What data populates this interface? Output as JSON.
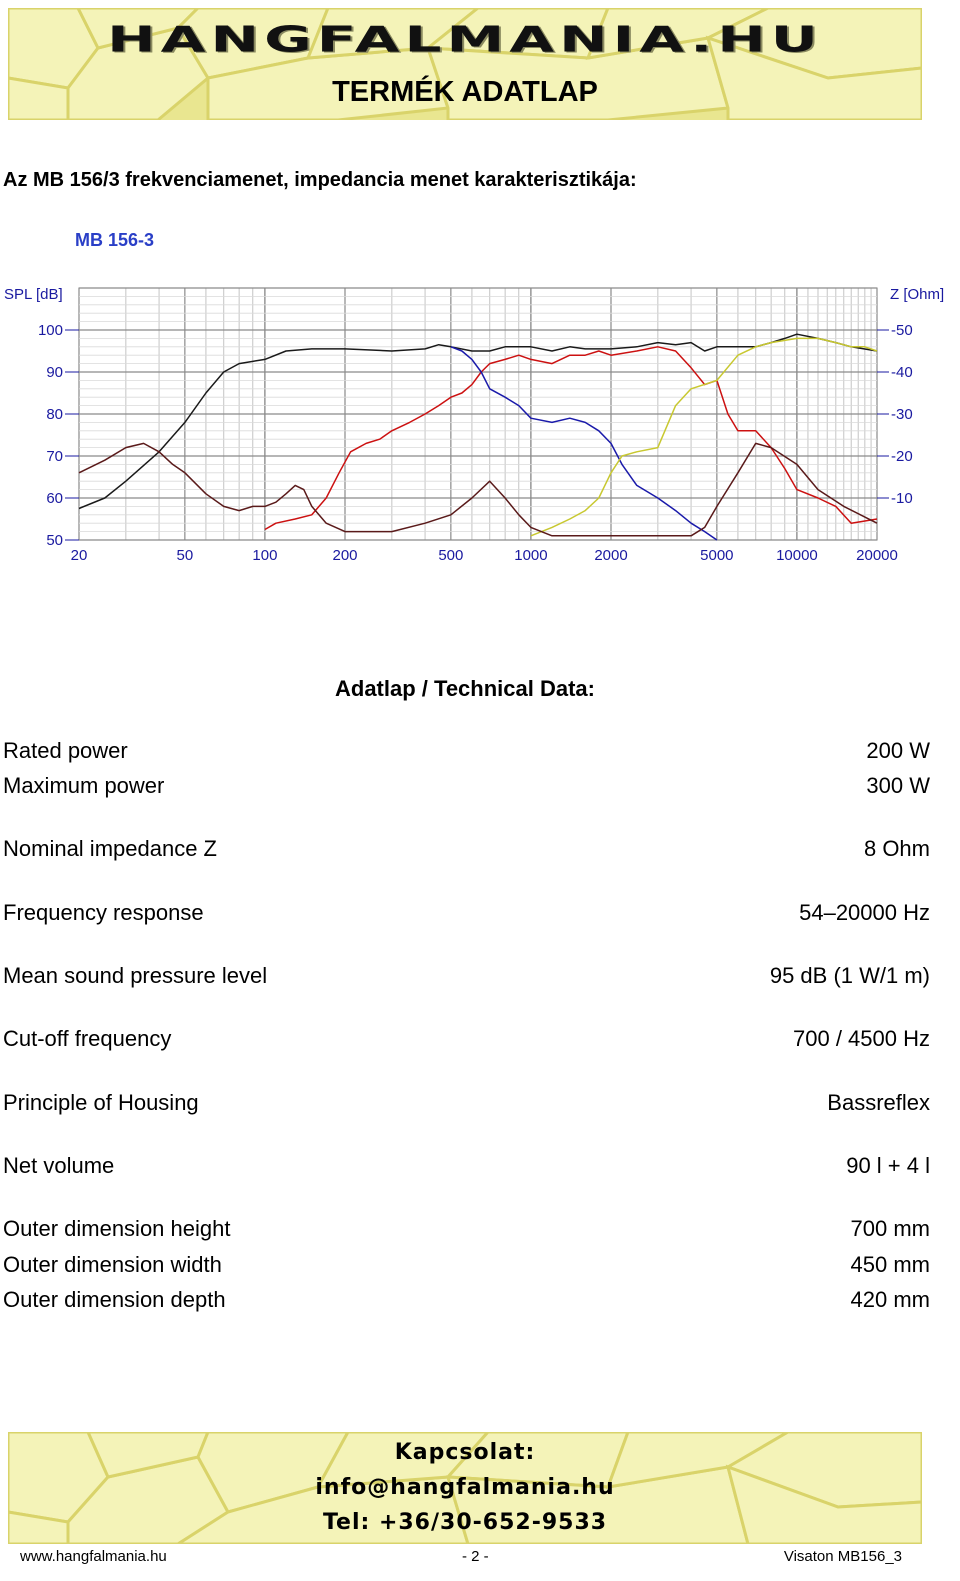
{
  "header": {
    "logo_text": "HANGFALMANIA.HU",
    "title": "TERMÉK ADATLAP"
  },
  "section_title": "Az MB 156/3 frekvenciamenet, impedancia menet karakterisztikája:",
  "chart_data": {
    "type": "line",
    "title": "MB 156-3",
    "ylabel_left": "SPL [dB]",
    "ylabel_right": "Z [Ohm]",
    "x_scale": "log",
    "xlim": [
      20,
      20000
    ],
    "ylim": [
      50,
      110
    ],
    "y2lim": [
      0,
      60
    ],
    "x_ticks": [
      "20",
      "50",
      "100",
      "200",
      "500",
      "1000",
      "2000",
      "5000",
      "10000",
      "20000"
    ],
    "y_ticks": [
      "100",
      "90",
      "80",
      "70",
      "60",
      "50"
    ],
    "y2_ticks": [
      "-50",
      "-40",
      "-30",
      "-20",
      "-10"
    ],
    "grid": true,
    "series": [
      {
        "color": "#1a1a1a",
        "points": [
          [
            20,
            57.5
          ],
          [
            25,
            60
          ],
          [
            30,
            64
          ],
          [
            40,
            71
          ],
          [
            50,
            78
          ],
          [
            60,
            85
          ],
          [
            70,
            90
          ],
          [
            80,
            92
          ],
          [
            100,
            93
          ],
          [
            120,
            95
          ],
          [
            150,
            95.5
          ],
          [
            200,
            95.5
          ],
          [
            300,
            95
          ],
          [
            400,
            95.5
          ],
          [
            450,
            96.5
          ],
          [
            500,
            96
          ],
          [
            600,
            95
          ],
          [
            700,
            95
          ],
          [
            800,
            96
          ],
          [
            900,
            96
          ],
          [
            1000,
            96
          ],
          [
            1200,
            95
          ],
          [
            1400,
            96
          ],
          [
            1600,
            95.5
          ],
          [
            1800,
            95.5
          ],
          [
            2000,
            95.5
          ],
          [
            2500,
            96
          ],
          [
            3000,
            97
          ],
          [
            3500,
            96.5
          ],
          [
            4000,
            97
          ],
          [
            4500,
            95
          ],
          [
            5000,
            96
          ],
          [
            6000,
            96
          ],
          [
            7000,
            96
          ],
          [
            8000,
            97
          ],
          [
            9000,
            98
          ],
          [
            10000,
            99
          ],
          [
            12000,
            98
          ],
          [
            14000,
            97
          ],
          [
            16000,
            96
          ],
          [
            20000,
            95
          ]
        ]
      },
      {
        "color": "#cc1111",
        "points": [
          [
            100,
            52.5
          ],
          [
            110,
            54
          ],
          [
            130,
            55
          ],
          [
            150,
            56
          ],
          [
            170,
            60
          ],
          [
            190,
            66
          ],
          [
            210,
            71
          ],
          [
            240,
            73
          ],
          [
            270,
            74
          ],
          [
            300,
            76
          ],
          [
            350,
            78
          ],
          [
            400,
            80
          ],
          [
            450,
            82
          ],
          [
            500,
            84
          ],
          [
            550,
            85
          ],
          [
            600,
            87
          ],
          [
            650,
            90
          ],
          [
            700,
            92
          ],
          [
            800,
            93
          ],
          [
            900,
            94
          ],
          [
            1000,
            93
          ],
          [
            1200,
            92
          ],
          [
            1400,
            94
          ],
          [
            1600,
            94
          ],
          [
            1800,
            95
          ],
          [
            2000,
            94
          ],
          [
            2500,
            95
          ],
          [
            3000,
            96
          ],
          [
            3500,
            95
          ],
          [
            4000,
            91
          ],
          [
            4500,
            87
          ],
          [
            5000,
            88
          ],
          [
            5500,
            80
          ],
          [
            6000,
            76
          ],
          [
            7000,
            76
          ],
          [
            8000,
            72
          ],
          [
            9000,
            67
          ],
          [
            10000,
            62
          ],
          [
            12000,
            60
          ],
          [
            14000,
            58
          ],
          [
            16000,
            54
          ],
          [
            20000,
            55
          ]
        ]
      },
      {
        "color": "#1a1aaa",
        "points": [
          [
            500,
            96
          ],
          [
            550,
            95
          ],
          [
            600,
            93
          ],
          [
            650,
            90
          ],
          [
            700,
            86
          ],
          [
            800,
            84
          ],
          [
            900,
            82
          ],
          [
            1000,
            79
          ],
          [
            1200,
            78
          ],
          [
            1400,
            79
          ],
          [
            1600,
            78
          ],
          [
            1800,
            76
          ],
          [
            2000,
            73
          ],
          [
            2200,
            68
          ],
          [
            2500,
            63
          ],
          [
            3000,
            60
          ],
          [
            3500,
            57
          ],
          [
            4000,
            54
          ],
          [
            4500,
            52
          ],
          [
            5000,
            50
          ]
        ]
      },
      {
        "color": "#c8c830",
        "points": [
          [
            1000,
            51
          ],
          [
            1200,
            53
          ],
          [
            1400,
            55
          ],
          [
            1600,
            57
          ],
          [
            1800,
            60
          ],
          [
            2000,
            66
          ],
          [
            2200,
            70
          ],
          [
            2500,
            71
          ],
          [
            3000,
            72
          ],
          [
            3500,
            82
          ],
          [
            4000,
            86
          ],
          [
            5000,
            88
          ],
          [
            6000,
            94
          ],
          [
            7000,
            96
          ],
          [
            8000,
            97
          ],
          [
            10000,
            98
          ],
          [
            12000,
            98
          ],
          [
            14000,
            97
          ],
          [
            16000,
            96
          ],
          [
            18000,
            96
          ],
          [
            20000,
            95
          ]
        ]
      },
      {
        "color": "#5a1a1a",
        "points": [
          [
            20,
            66
          ],
          [
            25,
            69
          ],
          [
            30,
            72
          ],
          [
            35,
            73
          ],
          [
            40,
            71
          ],
          [
            45,
            68
          ],
          [
            50,
            66
          ],
          [
            60,
            61
          ],
          [
            70,
            58
          ],
          [
            80,
            57
          ],
          [
            90,
            58
          ],
          [
            100,
            58
          ],
          [
            110,
            59
          ],
          [
            120,
            61
          ],
          [
            130,
            63
          ],
          [
            140,
            62
          ],
          [
            150,
            58
          ],
          [
            170,
            54
          ],
          [
            200,
            52
          ],
          [
            300,
            52
          ],
          [
            400,
            54
          ],
          [
            500,
            56
          ],
          [
            600,
            60
          ],
          [
            700,
            64
          ],
          [
            800,
            60
          ],
          [
            900,
            56
          ],
          [
            1000,
            53
          ],
          [
            1200,
            51
          ],
          [
            1500,
            51
          ],
          [
            2000,
            51
          ],
          [
            3000,
            51
          ],
          [
            4000,
            51
          ],
          [
            4500,
            53
          ],
          [
            5000,
            58
          ],
          [
            6000,
            66
          ],
          [
            7000,
            73
          ],
          [
            8000,
            72
          ],
          [
            10000,
            68
          ],
          [
            12000,
            62
          ],
          [
            15000,
            58
          ],
          [
            20000,
            54
          ]
        ]
      }
    ]
  },
  "tech_title": "Adatlap / Technical Data:",
  "specs": [
    {
      "label": "Rated power",
      "value": "200 W"
    },
    {
      "label": "Maximum power",
      "value": "300 W"
    },
    {
      "label": "Nominal impedance Z",
      "value": "8 Ohm"
    },
    {
      "label": "Frequency response",
      "value": "54–20000 Hz"
    },
    {
      "label": "Mean sound pressure level",
      "value": "95 dB (1 W/1 m)"
    },
    {
      "label": "Cut-off frequency",
      "value": "700 / 4500 Hz"
    },
    {
      "label": "Principle of Housing",
      "value": "Bassreflex"
    },
    {
      "label": "Net volume",
      "value": "90 l + 4 l"
    },
    {
      "label": "Outer dimension height",
      "value": "700 mm"
    },
    {
      "label": "Outer dimension width",
      "value": "450 mm"
    },
    {
      "label": "Outer dimension depth",
      "value": "420 mm"
    }
  ],
  "contact": {
    "heading": "Kapcsolat:",
    "email": "info@hangfalmania.hu",
    "phone": "Tel: +36/30-652-9533"
  },
  "footer": {
    "website": "www.hangfalmania.hu",
    "page": "- 2 -",
    "doc_id": "Visaton MB156_3"
  }
}
